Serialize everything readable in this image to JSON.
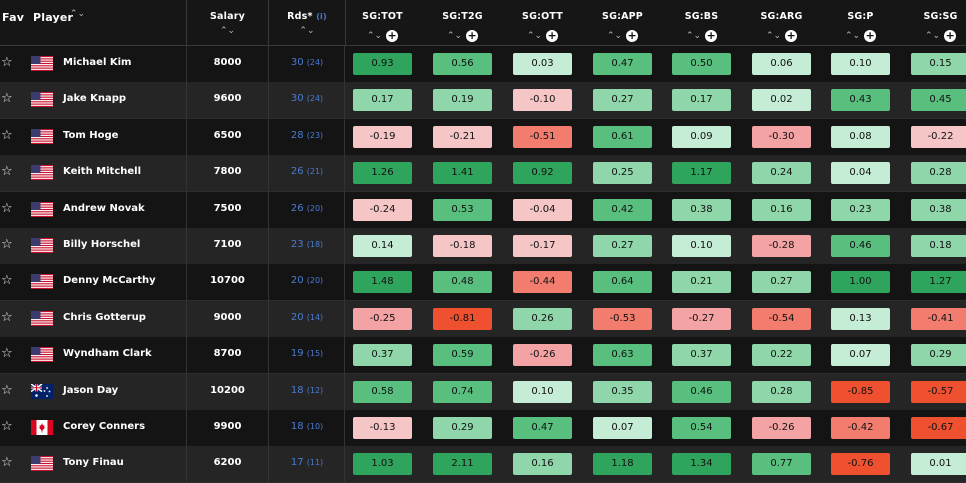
{
  "header": {
    "fav": "Fav",
    "player": "Player",
    "salary": "Salary",
    "rds": "Rds*",
    "rds_info": "(i)",
    "stats": [
      "SG:TOT",
      "SG:T2G",
      "SG:OTT",
      "SG:APP",
      "SG:BS",
      "SG:ARG",
      "SG:P",
      "SG:SG"
    ],
    "sort_icon": "⌃⌄",
    "plus_icon": "+"
  },
  "colors": {
    "strong_green": "#2fa45c",
    "medium_green": "#58bf7f",
    "light_green": "#8fd6aa",
    "pale_green": "#c5ecd4",
    "pale_red": "#f6c6c6",
    "light_red": "#f3a3a3",
    "medium_red": "#f27c6e",
    "strong_red": "#ef5030"
  },
  "rows": [
    {
      "name": "Michael Kim",
      "flag": "us",
      "salary": "8000",
      "rds": "30",
      "rds_sub": "(24)",
      "sg": [
        "0.93",
        "0.56",
        "0.03",
        "0.47",
        "0.50",
        "0.06",
        "0.10",
        "0.15"
      ]
    },
    {
      "name": "Jake Knapp",
      "flag": "us",
      "salary": "9600",
      "rds": "30",
      "rds_sub": "(24)",
      "sg": [
        "0.17",
        "0.19",
        "-0.10",
        "0.27",
        "0.17",
        "0.02",
        "0.43",
        "0.45"
      ]
    },
    {
      "name": "Tom Hoge",
      "flag": "us",
      "salary": "6500",
      "rds": "28",
      "rds_sub": "(23)",
      "sg": [
        "-0.19",
        "-0.21",
        "-0.51",
        "0.61",
        "0.09",
        "-0.30",
        "0.08",
        "-0.22"
      ]
    },
    {
      "name": "Keith Mitchell",
      "flag": "us",
      "salary": "7800",
      "rds": "26",
      "rds_sub": "(21)",
      "sg": [
        "1.26",
        "1.41",
        "0.92",
        "0.25",
        "1.17",
        "0.24",
        "0.04",
        "0.28"
      ]
    },
    {
      "name": "Andrew Novak",
      "flag": "us",
      "salary": "7500",
      "rds": "26",
      "rds_sub": "(20)",
      "sg": [
        "-0.24",
        "0.53",
        "-0.04",
        "0.42",
        "0.38",
        "0.16",
        "0.23",
        "0.38"
      ]
    },
    {
      "name": "Billy Horschel",
      "flag": "us",
      "salary": "7100",
      "rds": "23",
      "rds_sub": "(18)",
      "sg": [
        "0.14",
        "-0.18",
        "-0.17",
        "0.27",
        "0.10",
        "-0.28",
        "0.46",
        "0.18"
      ]
    },
    {
      "name": "Denny McCarthy",
      "flag": "us",
      "salary": "10700",
      "rds": "20",
      "rds_sub": "(20)",
      "sg": [
        "1.48",
        "0.48",
        "-0.44",
        "0.64",
        "0.21",
        "0.27",
        "1.00",
        "1.27"
      ]
    },
    {
      "name": "Chris Gotterup",
      "flag": "us",
      "salary": "9000",
      "rds": "20",
      "rds_sub": "(14)",
      "sg": [
        "-0.25",
        "-0.81",
        "0.26",
        "-0.53",
        "-0.27",
        "-0.54",
        "0.13",
        "-0.41"
      ]
    },
    {
      "name": "Wyndham Clark",
      "flag": "us",
      "salary": "8700",
      "rds": "19",
      "rds_sub": "(15)",
      "sg": [
        "0.37",
        "0.59",
        "-0.26",
        "0.63",
        "0.37",
        "0.22",
        "0.07",
        "0.29"
      ]
    },
    {
      "name": "Jason Day",
      "flag": "au",
      "salary": "10200",
      "rds": "18",
      "rds_sub": "(12)",
      "sg": [
        "0.58",
        "0.74",
        "0.10",
        "0.35",
        "0.46",
        "0.28",
        "-0.85",
        "-0.57"
      ]
    },
    {
      "name": "Corey Conners",
      "flag": "ca",
      "salary": "9900",
      "rds": "18",
      "rds_sub": "(10)",
      "sg": [
        "-0.13",
        "0.29",
        "0.47",
        "0.07",
        "0.54",
        "-0.26",
        "-0.42",
        "-0.67"
      ]
    },
    {
      "name": "Tony Finau",
      "flag": "us",
      "salary": "6200",
      "rds": "17",
      "rds_sub": "(11)",
      "sg": [
        "1.03",
        "2.11",
        "0.16",
        "1.18",
        "1.34",
        "0.77",
        "-0.76",
        "0.01"
      ]
    }
  ]
}
